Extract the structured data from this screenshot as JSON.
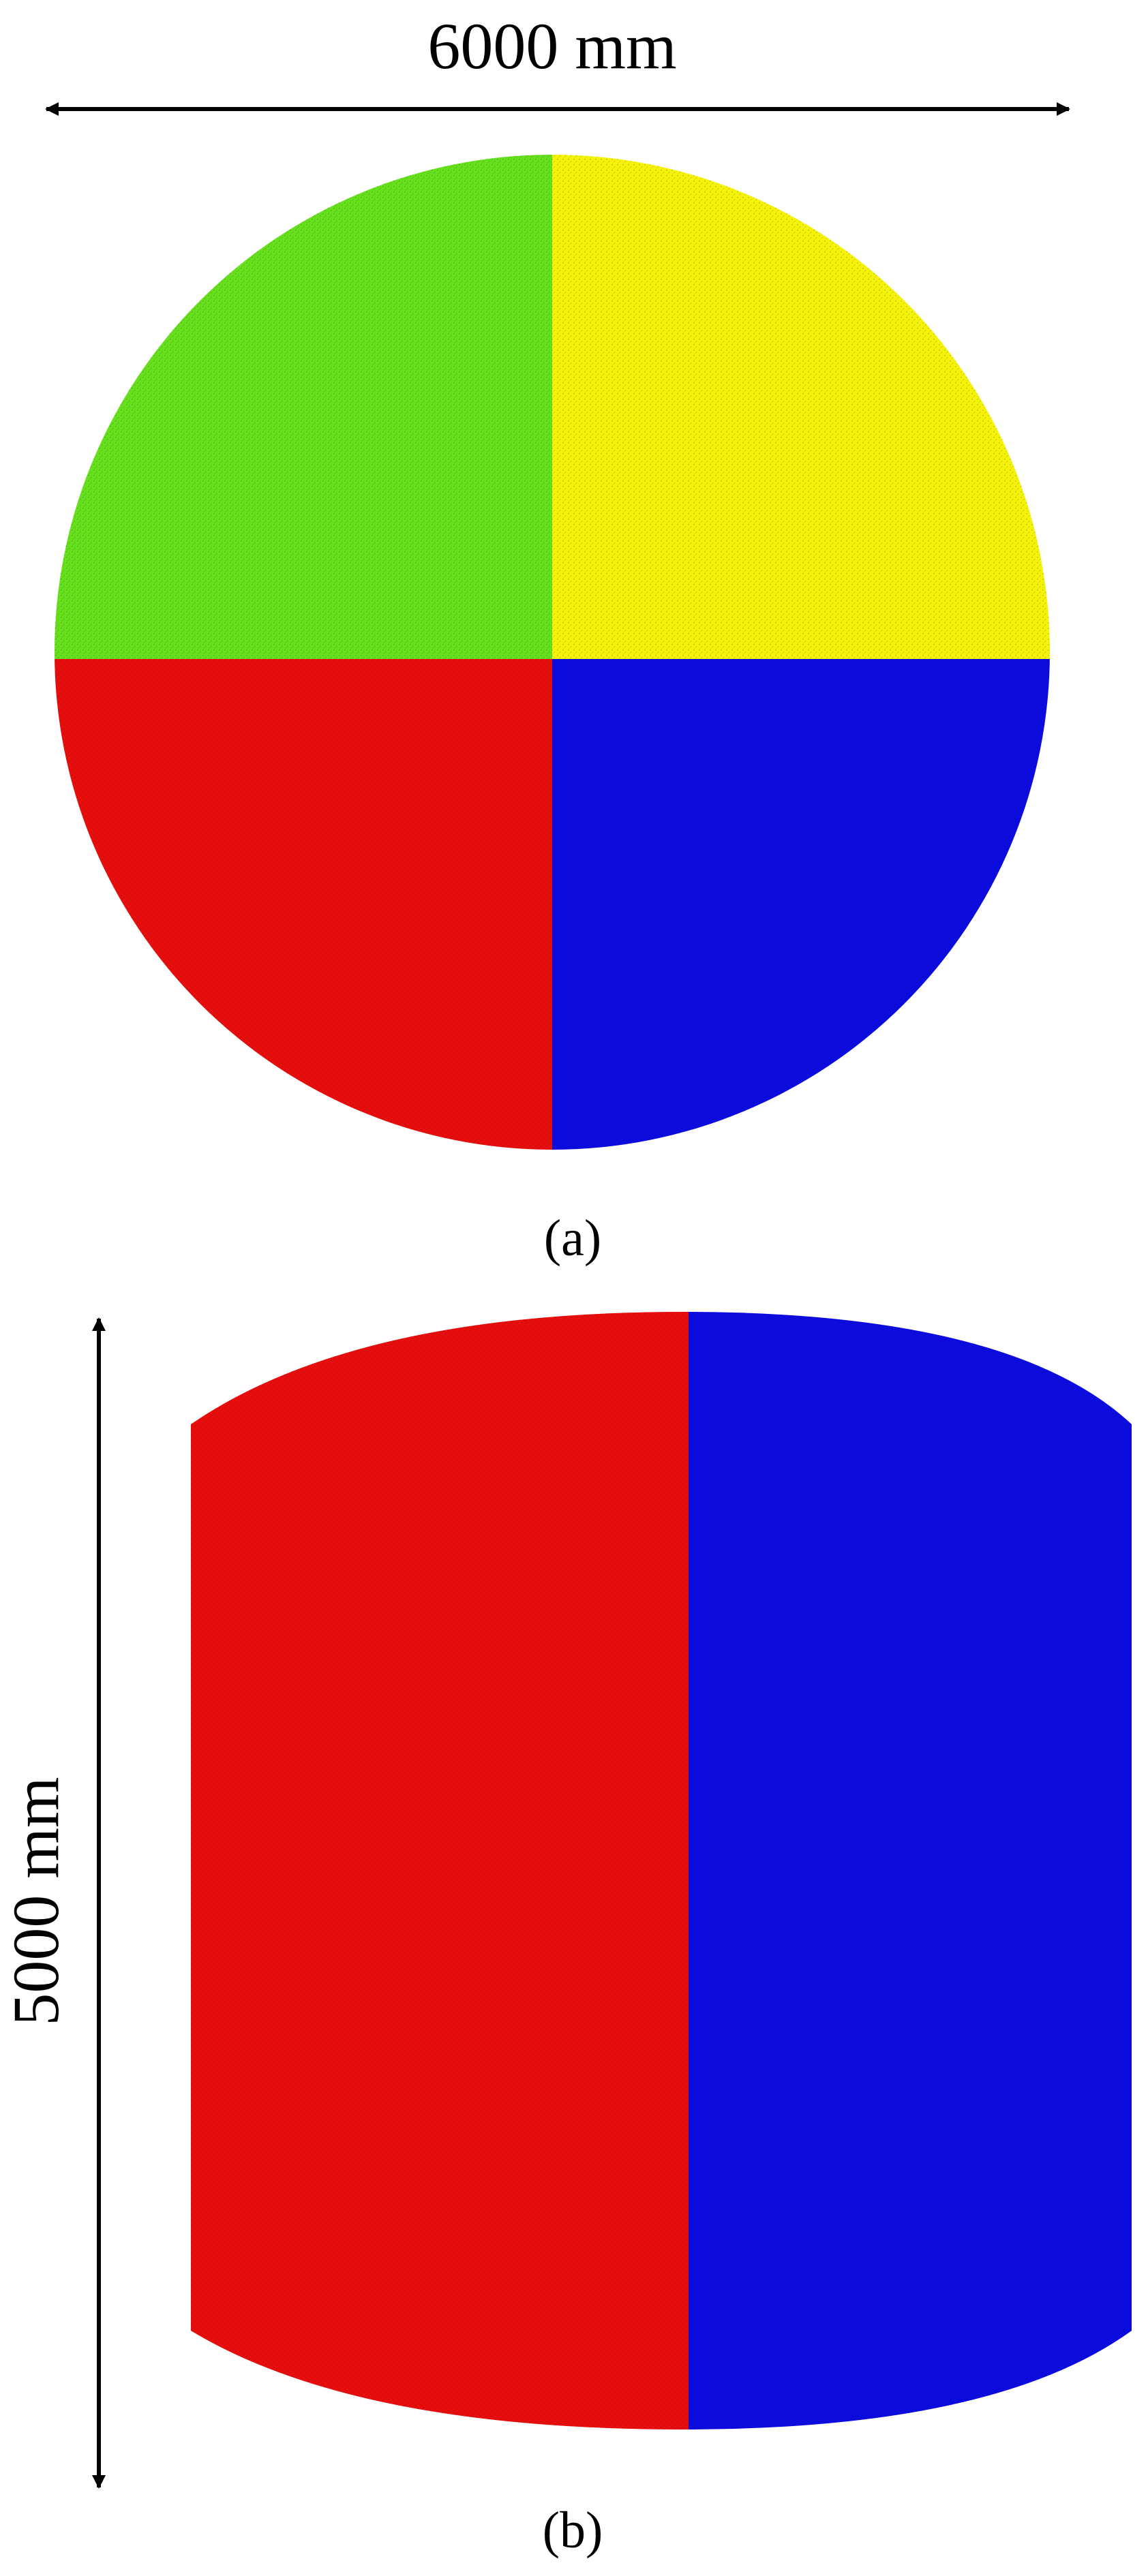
{
  "panel_a": {
    "dimension_label": "6000 mm",
    "caption": "(a)",
    "quadrants": {
      "top_left_color": "#66e01c",
      "top_right_color": "#f6f30a",
      "bottom_left_color": "#e80e0e",
      "bottom_right_color": "#0c0ce0"
    }
  },
  "panel_b": {
    "dimension_label": "5000 mm",
    "caption": "(b)",
    "halves": {
      "left_color": "#e80e0e",
      "right_color": "#0c0ce0"
    }
  }
}
